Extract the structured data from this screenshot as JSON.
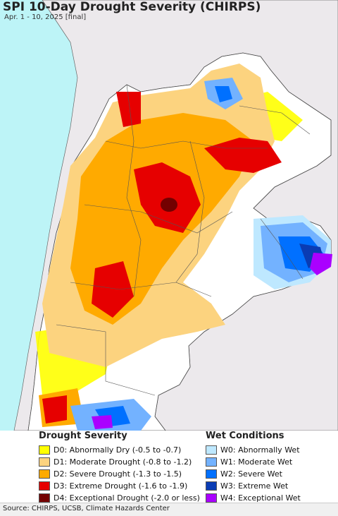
{
  "title": "SPI 10-Day Drought Severity (CHIRPS)",
  "subtitle": "Apr. 1 - 10, 2025 [final]",
  "legend": {
    "drought": {
      "heading": "Drought Severity",
      "items": [
        {
          "label": "D0: Abnormally Dry (-0.5 to -0.7)",
          "color": "#ffff00"
        },
        {
          "label": "D1: Moderate Drought (-0.8 to -1.2)",
          "color": "#fcd37f"
        },
        {
          "label": "D2: Severe Drought (-1.3 to -1.5)",
          "color": "#ffaa00"
        },
        {
          "label": "D3: Extreme Drought (-1.6 to -1.9)",
          "color": "#e60000"
        },
        {
          "label": "D4: Exceptional Drought (-2.0 or less)",
          "color": "#730000"
        }
      ]
    },
    "wet": {
      "heading": "Wet Conditions",
      "items": [
        {
          "label": "W0: Abnormally Wet",
          "color": "#bee8ff"
        },
        {
          "label": "W1: Moderate Wet",
          "color": "#73b2ff"
        },
        {
          "label": "W2: Severe Wet",
          "color": "#0070ff"
        },
        {
          "label": "W3: Extreme Wet",
          "color": "#0a3cb4"
        },
        {
          "label": "W4: Exceptional Wet",
          "color": "#aa00ff"
        }
      ]
    }
  },
  "map_colors": {
    "ocean": "#bdf4f7",
    "land_outside": "#ece9ec",
    "no_drought": "#ffffff"
  },
  "source": "Source: CHIRPS, UCSB, Climate Hazards Center"
}
